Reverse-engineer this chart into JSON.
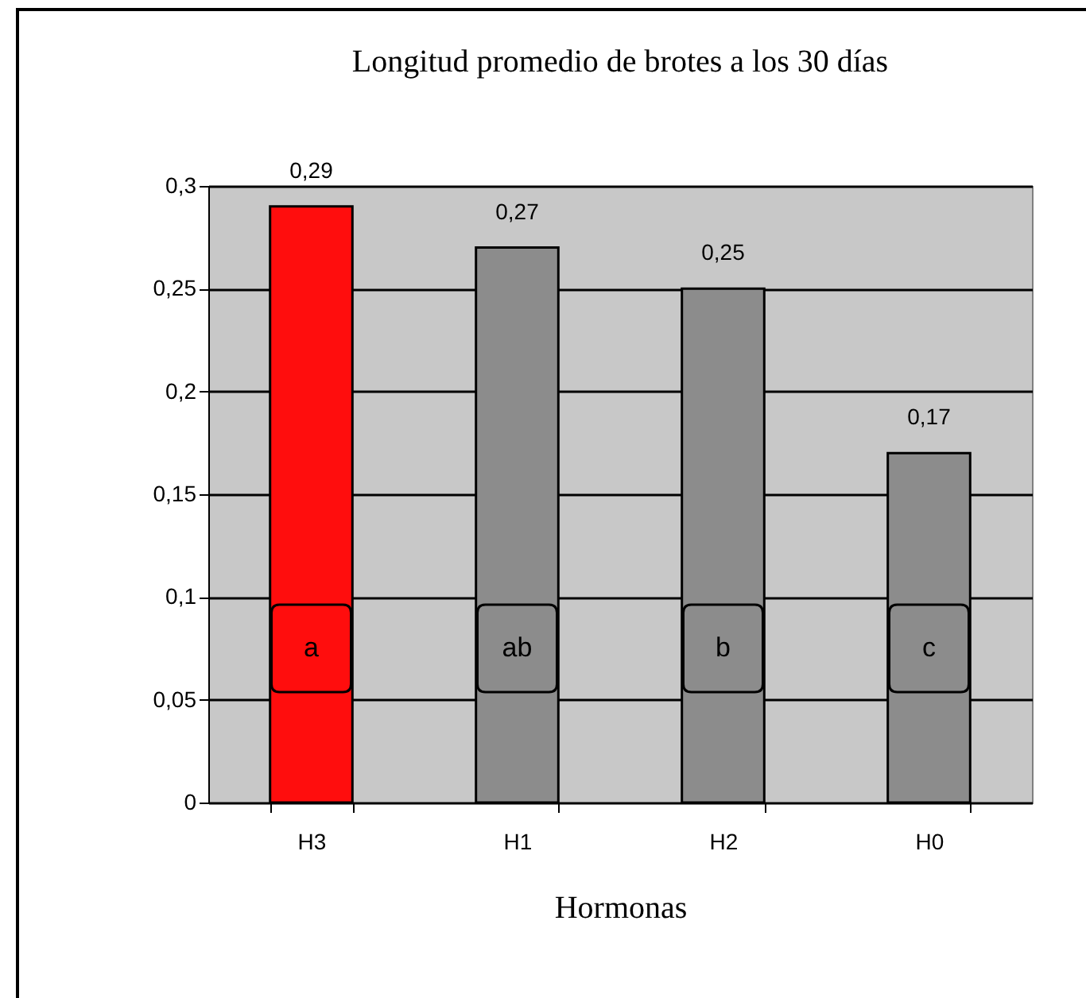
{
  "chart_data": {
    "type": "bar",
    "title": "Longitud promedio de brotes a los 30 días",
    "xlabel": "Hormonas",
    "categories": [
      "H3",
      "H1",
      "H2",
      "H0"
    ],
    "values": [
      0.29,
      0.27,
      0.25,
      0.17
    ],
    "colors": [
      "#ff0d0d",
      "#8c8c8c",
      "#8c8c8c",
      "#8c8c8c"
    ],
    "value_labels": [
      "0,29",
      "0,27",
      "0,25",
      "0,17"
    ],
    "ylim": [
      0,
      0.3
    ],
    "yticks": [
      0,
      {
        "value": 0.05,
        "label": "0,05"
      },
      {
        "value": 0.1,
        "label": "0,1"
      },
      {
        "value": 0.15,
        "label": "0,15"
      },
      {
        "value": 0.2,
        "label": "0,2"
      },
      {
        "value": 0.25,
        "label": "0,25"
      },
      {
        "value": 0.3,
        "label": "0,3"
      }
    ],
    "grid": true,
    "annotations": [
      "a",
      "ab",
      "b",
      "c"
    ]
  }
}
